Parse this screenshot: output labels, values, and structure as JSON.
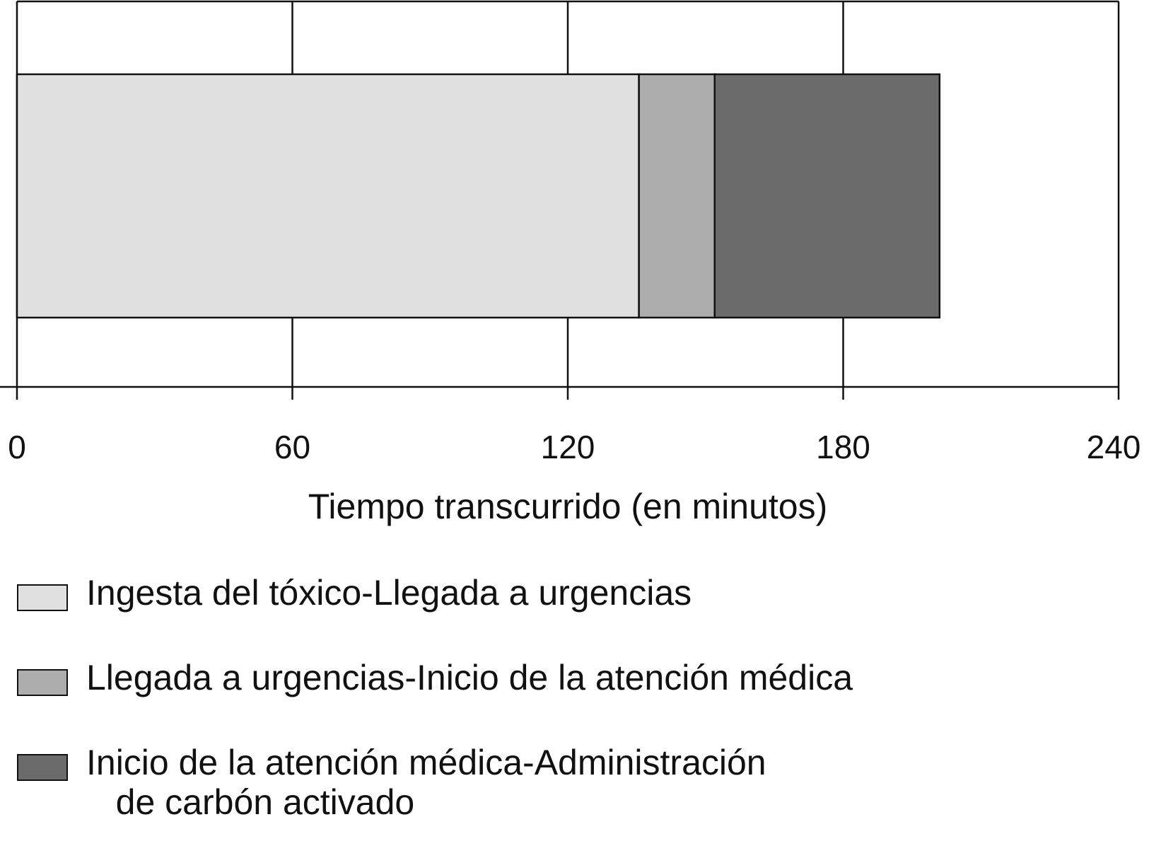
{
  "chart_data": {
    "type": "bar",
    "orientation": "horizontal",
    "stacked": true,
    "xlabel": "Tiempo transcurrido (en minutos)",
    "ylabel": "",
    "xlim": [
      0,
      240
    ],
    "xticks": [
      0,
      60,
      120,
      180,
      240
    ],
    "xtick_labels": [
      "0",
      "60",
      "120",
      "180",
      "240"
    ],
    "grid": true,
    "legend_position": "bottom",
    "segments": [
      {
        "name": "Ingesta del tóxico-Llegada a urgencias",
        "start": 0,
        "end": 135.5,
        "value": 135.5,
        "color": "#e0e0e0"
      },
      {
        "name": "Llegada a urgencias-Inicio de la atención médica",
        "start": 135.5,
        "end": 152,
        "value": 16.5,
        "color": "#adadad"
      },
      {
        "name": "Inicio de la atención médica-Administración\n   de carbón activado",
        "start": 152,
        "end": 201,
        "value": 49,
        "color": "#6b6b6b"
      }
    ]
  }
}
